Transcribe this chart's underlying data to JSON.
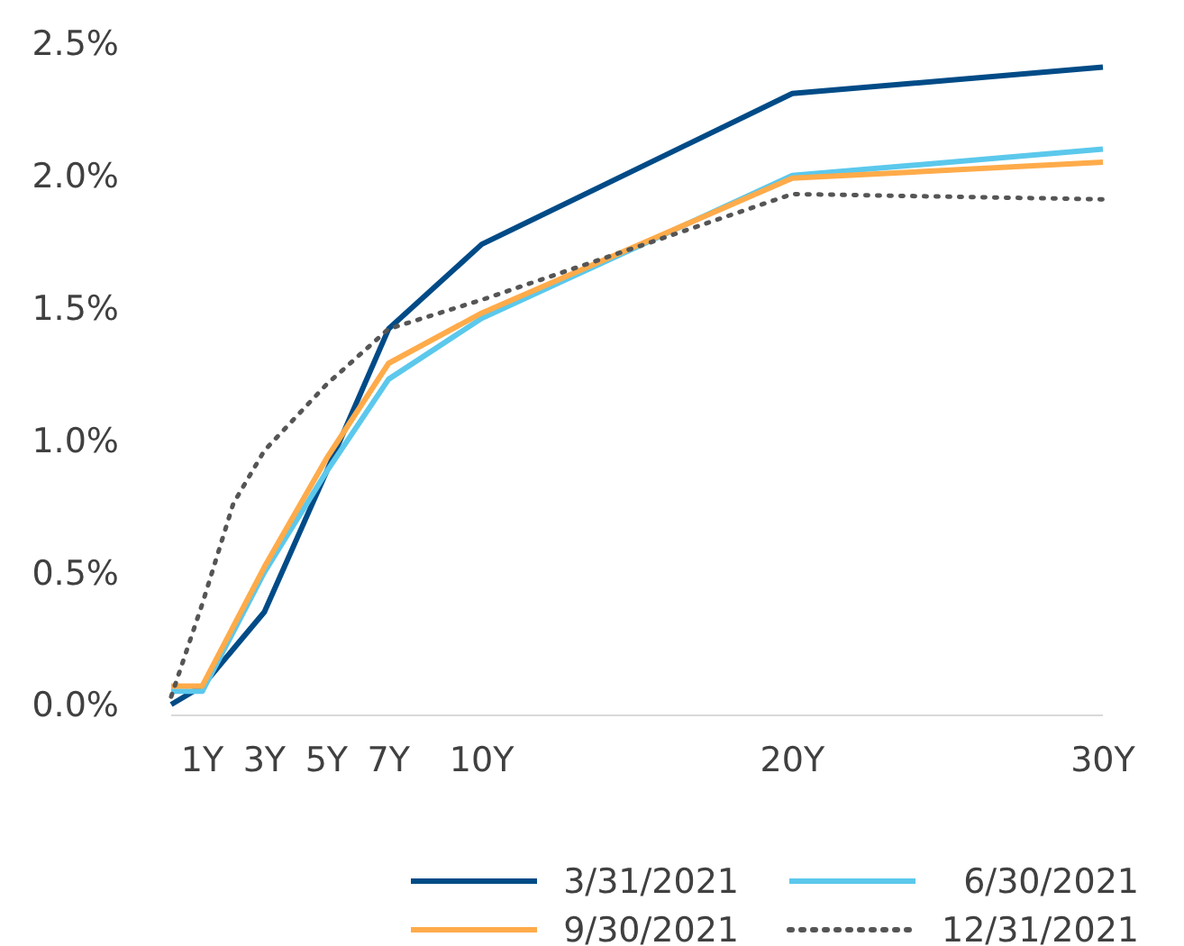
{
  "chart_data": {
    "type": "line",
    "xlim": [
      0,
      30
    ],
    "xticks": [
      {
        "value": 1,
        "label": "1Y"
      },
      {
        "value": 3,
        "label": "3Y"
      },
      {
        "value": 5,
        "label": "5Y"
      },
      {
        "value": 7,
        "label": "7Y"
      },
      {
        "value": 10,
        "label": "10Y"
      },
      {
        "value": 20,
        "label": "20Y"
      },
      {
        "value": 30,
        "label": "30Y"
      }
    ],
    "ylim": [
      0,
      2.5
    ],
    "yticks": [
      {
        "value": 0,
        "label": "0.0%"
      },
      {
        "value": 0.5,
        "label": "0.5%"
      },
      {
        "value": 1,
        "label": "1.0%"
      },
      {
        "value": 1.5,
        "label": "1.5%"
      },
      {
        "value": 2,
        "label": "2.0%"
      },
      {
        "value": 2.5,
        "label": "2.5%"
      }
    ],
    "grid": false,
    "legend": "bottom",
    "series": [
      {
        "name": "3/31/2021",
        "color": "#004b87",
        "x": [
          0,
          1,
          3,
          5,
          7,
          10,
          20,
          30
        ],
        "values": [
          0.0,
          0.07,
          0.35,
          0.88,
          1.42,
          1.74,
          2.31,
          2.41
        ]
      },
      {
        "name": "6/30/2021",
        "color": "#5bc8ec",
        "x": [
          0,
          1,
          3,
          5,
          7,
          10,
          20,
          30
        ],
        "values": [
          0.05,
          0.05,
          0.5,
          0.88,
          1.23,
          1.46,
          2.0,
          2.1
        ]
      },
      {
        "name": "9/30/2021",
        "color": "#ffab4a",
        "x": [
          0,
          1,
          3,
          5,
          7,
          10,
          20,
          30
        ],
        "values": [
          0.07,
          0.07,
          0.52,
          0.93,
          1.29,
          1.48,
          1.99,
          2.05
        ]
      },
      {
        "name": "12/31/2021",
        "color": "#555555",
        "line_style": "dotted",
        "x": [
          0,
          1,
          2,
          3,
          5,
          7,
          10,
          20,
          30
        ],
        "values": [
          0.03,
          0.38,
          0.76,
          0.96,
          1.21,
          1.42,
          1.53,
          1.93,
          1.91
        ]
      }
    ]
  }
}
